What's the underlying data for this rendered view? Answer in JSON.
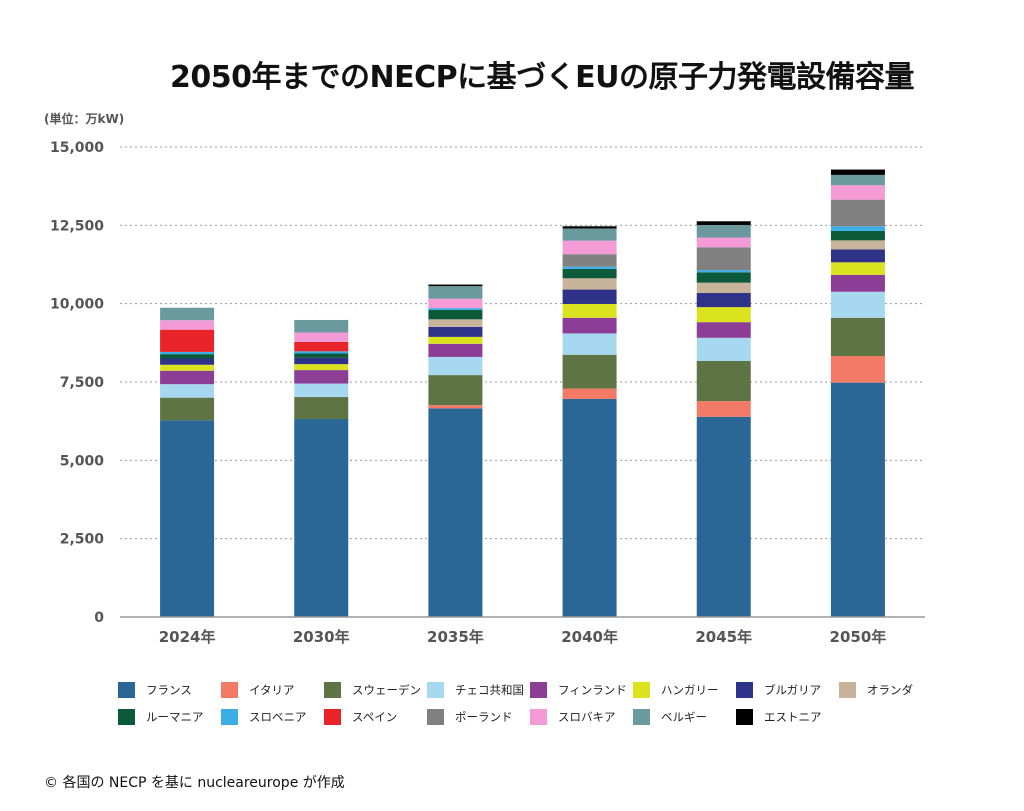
{
  "title": "2050年までのNECPに基づくEUの原子力発電設備容量",
  "unit_label": "(単位：万kW)",
  "source": "© 各国の NECP を基に nucleareurope が作成",
  "chart_data": {
    "type": "bar",
    "stacked": true,
    "title": "2050年までのNECPに基づくEUの原子力発電設備容量",
    "ylabel": "(単位：万kW)",
    "ylim": [
      0,
      15000
    ],
    "yticks": [
      0,
      2500,
      5000,
      7500,
      10000,
      12500,
      15000
    ],
    "ytick_labels": [
      "0",
      "2,500",
      "5,000",
      "7,500",
      "10,000",
      "12,500",
      "15,000"
    ],
    "grid": true,
    "legend_position": "bottom",
    "categories": [
      "2024年",
      "2030年",
      "2035年",
      "2040年",
      "2045年",
      "2050年"
    ],
    "series": [
      {
        "name": "フランス",
        "color": "#2a6796",
        "values": [
          6280,
          6320,
          6660,
          6960,
          6390,
          7480
        ]
      },
      {
        "name": "イタリア",
        "color": "#f47a68",
        "values": [
          0,
          0,
          100,
          330,
          500,
          850
        ]
      },
      {
        "name": "スウェーデン",
        "color": "#5e7444",
        "values": [
          720,
          700,
          960,
          1080,
          1280,
          1220
        ]
      },
      {
        "name": "チェコ共和国",
        "color": "#a6d9f0",
        "values": [
          430,
          430,
          580,
          680,
          740,
          830
        ]
      },
      {
        "name": "フィンランド",
        "color": "#8c3e97",
        "values": [
          430,
          430,
          420,
          500,
          500,
          540
        ]
      },
      {
        "name": "ハンガリー",
        "color": "#dbe21e",
        "values": [
          190,
          190,
          220,
          440,
          480,
          400
        ]
      },
      {
        "name": "ブルガリア",
        "color": "#2e3389",
        "values": [
          200,
          200,
          320,
          460,
          450,
          410
        ]
      },
      {
        "name": "オランダ",
        "color": "#c8b49a",
        "values": [
          0,
          0,
          240,
          360,
          330,
          290
        ]
      },
      {
        "name": "ルーマニア",
        "color": "#0d5a3a",
        "values": [
          140,
          140,
          300,
          300,
          330,
          300
        ]
      },
      {
        "name": "スロベニア",
        "color": "#3baee5",
        "values": [
          70,
          70,
          60,
          70,
          70,
          150
        ]
      },
      {
        "name": "スペイン",
        "color": "#e8232a",
        "values": [
          710,
          300,
          0,
          0,
          0,
          0
        ]
      },
      {
        "name": "ポーランド",
        "color": "#808080",
        "values": [
          0,
          0,
          0,
          400,
          730,
          850
        ]
      },
      {
        "name": "スロバキア",
        "color": "#f49ad6",
        "values": [
          300,
          300,
          300,
          430,
          310,
          460
        ]
      },
      {
        "name": "ベルギー",
        "color": "#6b9a9e",
        "values": [
          400,
          400,
          400,
          390,
          400,
          330
        ]
      },
      {
        "name": "エストニア",
        "color": "#000000",
        "values": [
          0,
          0,
          50,
          70,
          120,
          170
        ]
      }
    ]
  }
}
